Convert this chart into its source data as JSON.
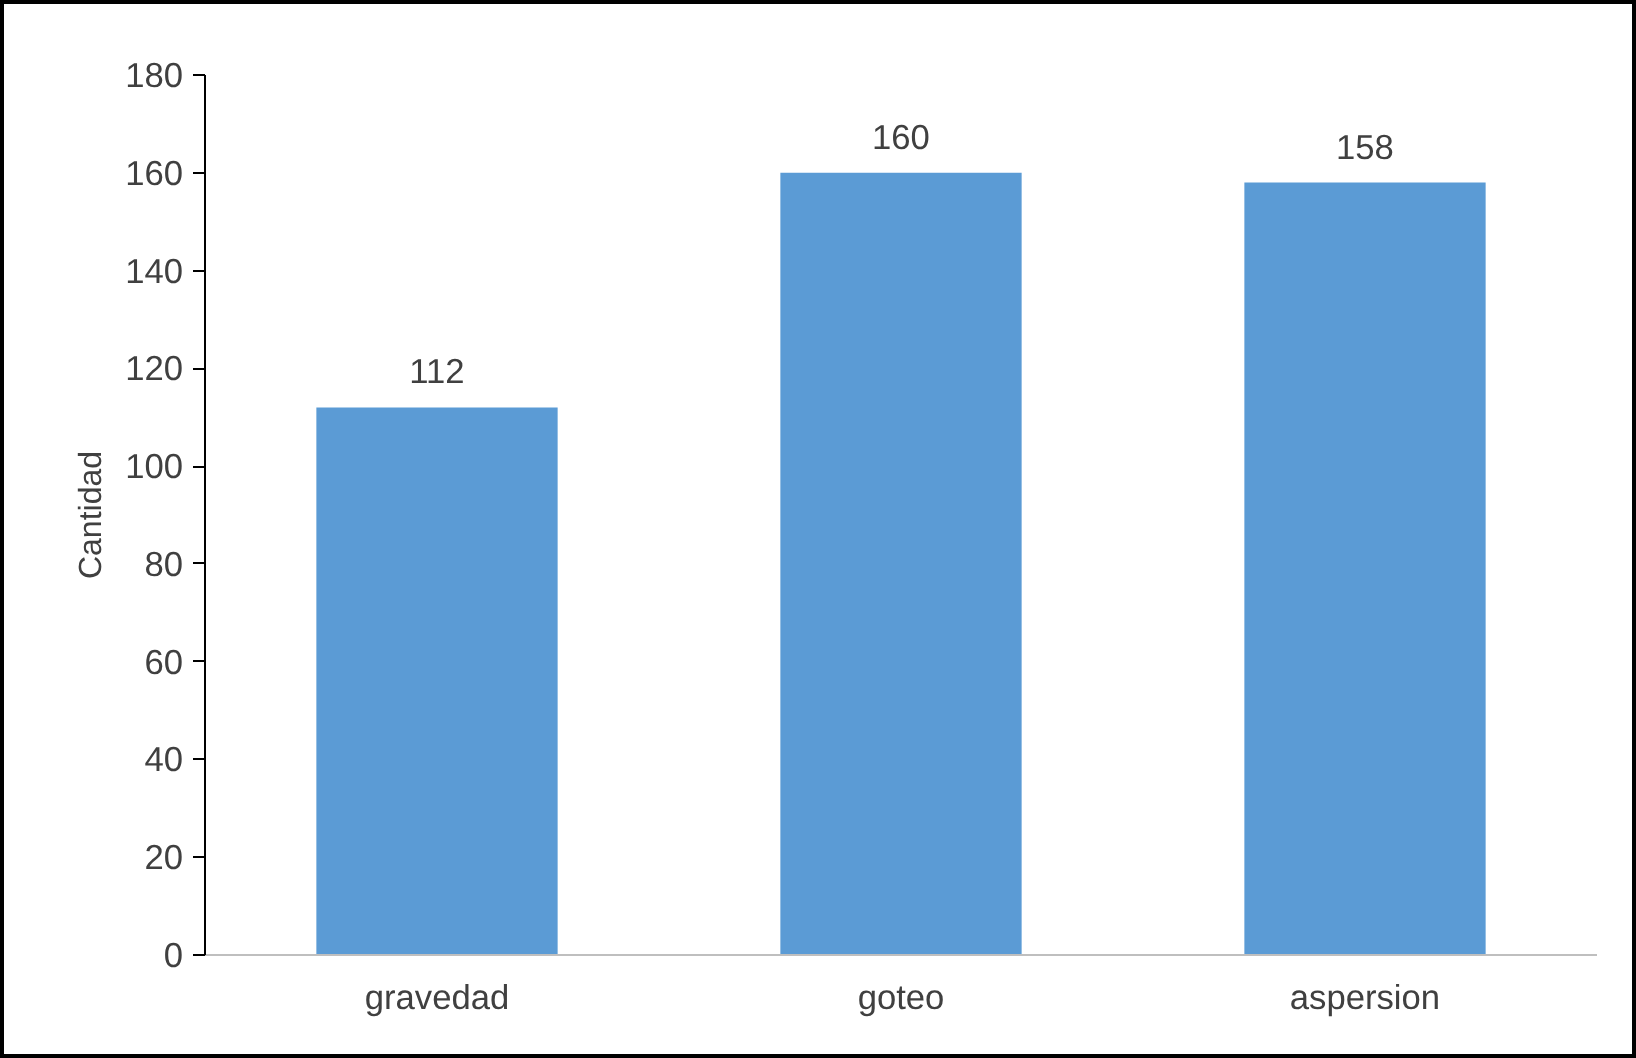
{
  "chart_data": {
    "type": "bar",
    "ylabel": "Cantidad",
    "categories": [
      "gravedad",
      "goteo",
      "aspersion"
    ],
    "values": [
      112,
      160,
      158
    ],
    "color": "#5b9bd5",
    "ylim": [
      0,
      180
    ],
    "yticks": [
      0,
      20,
      40,
      60,
      80,
      100,
      120,
      140,
      160,
      180
    ],
    "grid": false,
    "data_labels": true
  }
}
